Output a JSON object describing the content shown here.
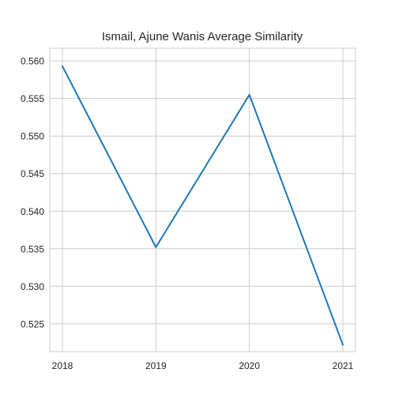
{
  "chart_data": {
    "type": "line",
    "title": "Ismail, Ajune Wanis Average Similarity",
    "xlabel": "",
    "ylabel": "",
    "x": [
      "2018",
      "2019",
      "2020",
      "2021"
    ],
    "series": [
      {
        "values": [
          0.5593,
          0.5352,
          0.5555,
          0.5222
        ]
      }
    ],
    "ylim": [
      0.5213,
      0.5617
    ],
    "y_ticks": [
      0.525,
      0.53,
      0.535,
      0.54,
      0.545,
      0.55,
      0.555,
      0.56
    ],
    "y_tick_labels": [
      "0.525",
      "0.530",
      "0.535",
      "0.540",
      "0.545",
      "0.550",
      "0.555",
      "0.560"
    ],
    "grid": true,
    "line_color": "#1f77b4",
    "grid_color": "#cccccc",
    "axes_edge_color": "#cccccc"
  }
}
